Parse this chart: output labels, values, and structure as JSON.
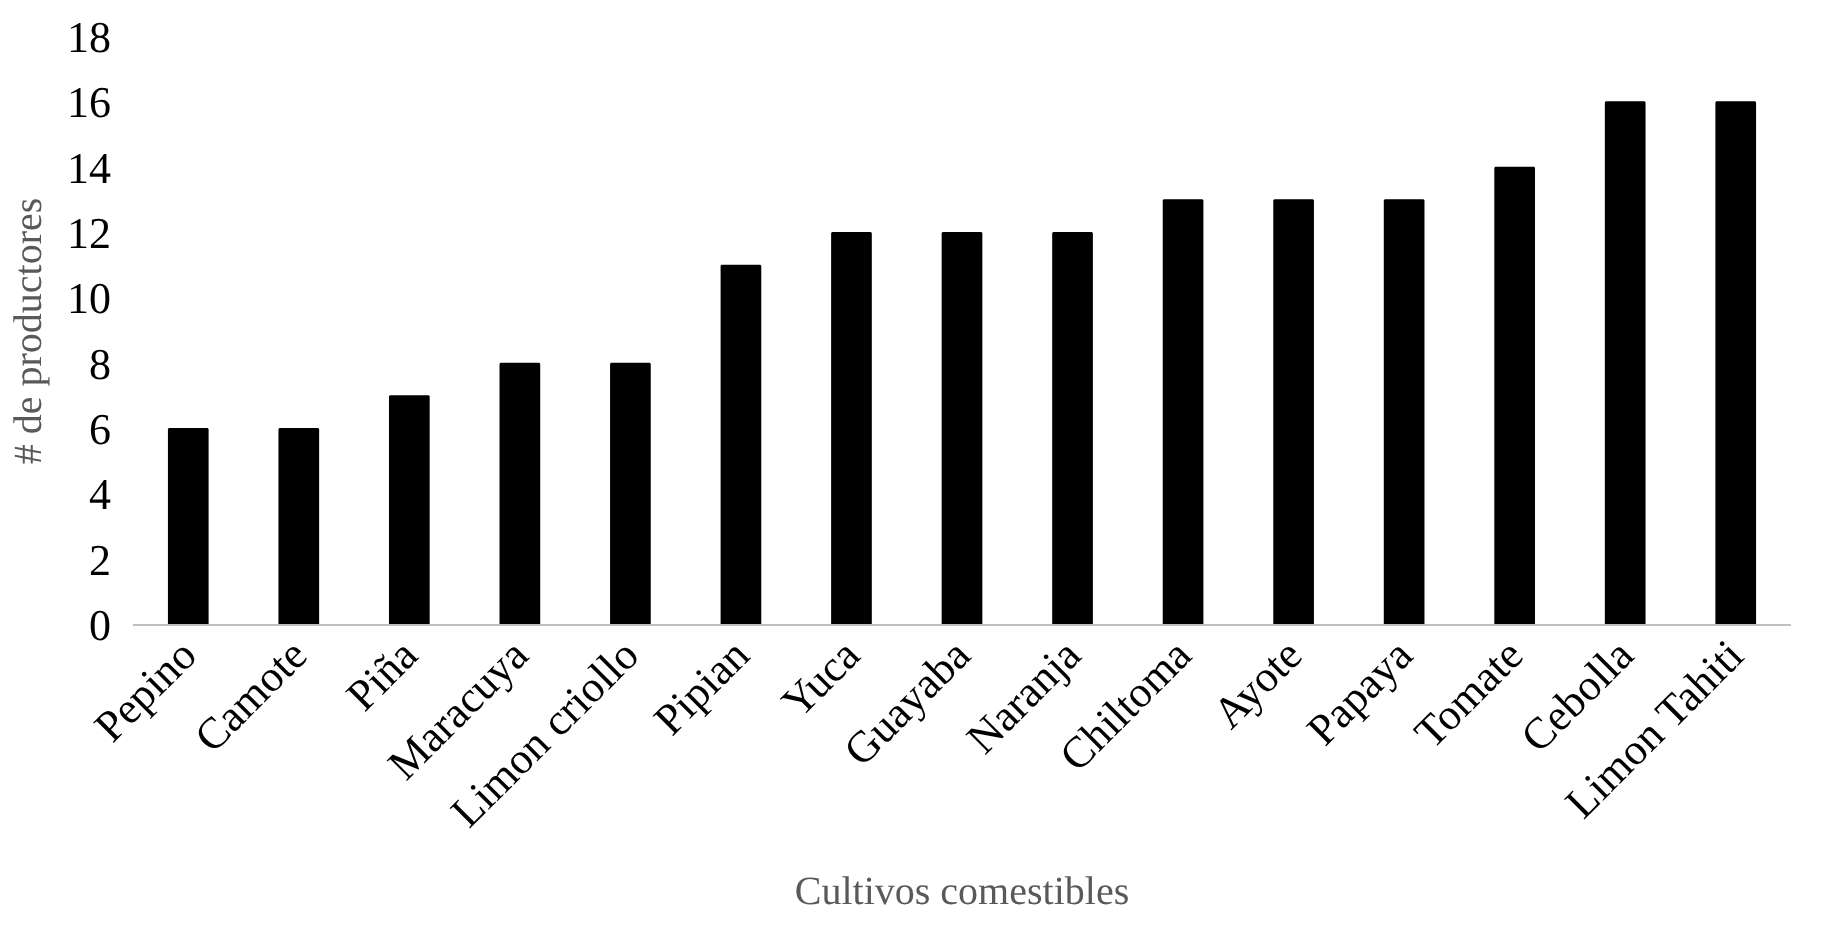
{
  "chart_data": {
    "type": "bar",
    "xlabel": "Cultivos comestibles",
    "ylabel": "# de productores",
    "categories": [
      "Pepino",
      "Camote",
      "Piña",
      "Maracuya",
      "Limon criollo",
      "Pipian",
      "Yuca",
      "Guayaba",
      "Naranja",
      "Chiltoma",
      "Ayote",
      "Papaya",
      "Tomate",
      "Cebolla",
      "Limon Tahiti"
    ],
    "values": [
      6,
      6,
      7,
      8,
      8,
      11,
      12,
      12,
      12,
      13,
      13,
      13,
      14,
      16,
      16
    ],
    "color": "#000000",
    "ylim": [
      0,
      18
    ],
    "yticks": [
      0,
      2,
      4,
      6,
      8,
      10,
      12,
      14,
      16,
      18
    ],
    "grid": false
  }
}
